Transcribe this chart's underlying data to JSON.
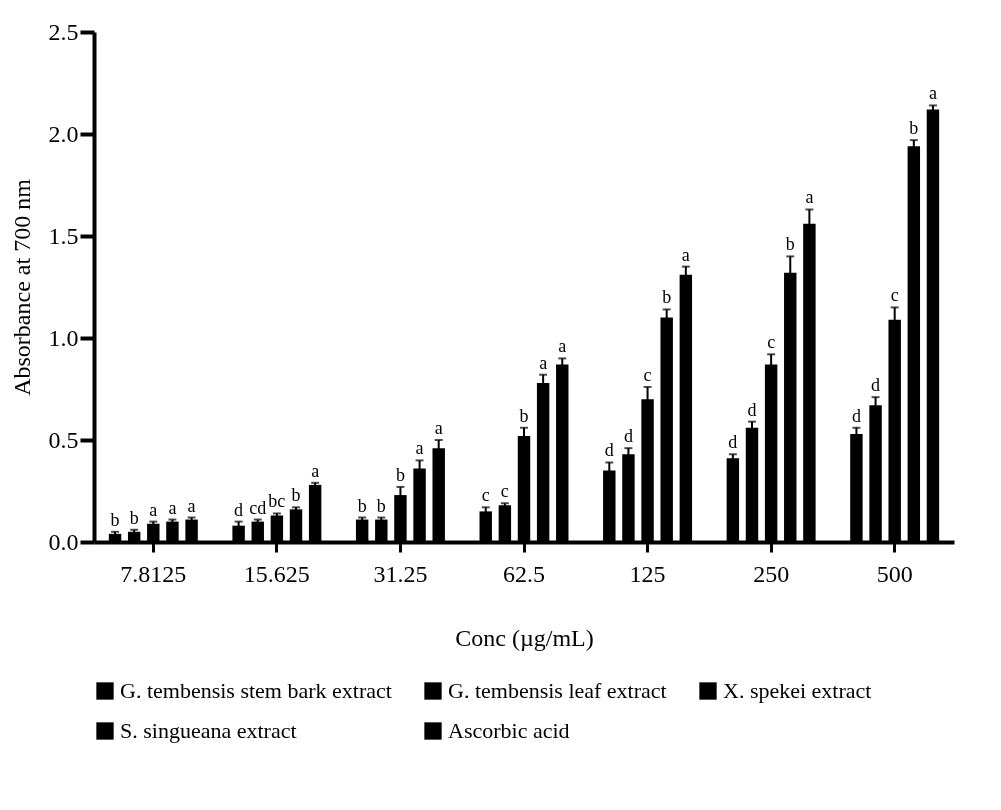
{
  "chart_data": {
    "type": "bar",
    "xlabel": "Conc (µg/mL)",
    "ylabel": "Absorbance at 700 nm",
    "categories": [
      "7.8125",
      "15.625",
      "31.25",
      "62.5",
      "125",
      "250",
      "500"
    ],
    "ylim": [
      0,
      2.5
    ],
    "yticks": [
      {
        "value": 0,
        "label": "0.0"
      },
      {
        "value": 0.5,
        "label": "0.5"
      },
      {
        "value": 1,
        "label": "1.0"
      },
      {
        "value": 1.5,
        "label": "1.5"
      },
      {
        "value": 2,
        "label": "2.0"
      },
      2.5
    ],
    "grid": false,
    "legend": "bottom",
    "series": [
      {
        "name": "G. tembensis stem bark extract",
        "color": "#000000",
        "values": [
          0.04,
          0.08,
          0.11,
          0.15,
          0.35,
          0.41,
          0.53
        ],
        "errors": [
          0.01,
          0.02,
          0.01,
          0.02,
          0.04,
          0.02,
          0.03
        ],
        "value_labels": [
          "b",
          "d",
          "b",
          "c",
          "d",
          "d",
          "d"
        ]
      },
      {
        "name": "G. tembensis leaf extract",
        "color": "#000000",
        "values": [
          0.05,
          0.1,
          0.11,
          0.18,
          0.43,
          0.56,
          0.67
        ],
        "errors": [
          0.01,
          0.01,
          0.01,
          0.01,
          0.03,
          0.03,
          0.04
        ],
        "value_labels": [
          "b",
          "cd",
          "b",
          "c",
          "d",
          "d",
          "d"
        ]
      },
      {
        "name": "X. spekei extract",
        "color": "#000000",
        "values": [
          0.09,
          0.13,
          0.23,
          0.52,
          0.7,
          0.87,
          1.09
        ],
        "errors": [
          0.01,
          0.01,
          0.04,
          0.04,
          0.06,
          0.05,
          0.06
        ],
        "value_labels": [
          "a",
          "bc",
          "b",
          "b",
          "c",
          "c",
          "c"
        ]
      },
      {
        "name": "S. singueana extract",
        "color": "#000000",
        "values": [
          0.1,
          0.16,
          0.36,
          0.78,
          1.1,
          1.32,
          1.94
        ],
        "errors": [
          0.01,
          0.01,
          0.04,
          0.04,
          0.04,
          0.08,
          0.03
        ],
        "value_labels": [
          "a",
          "b",
          "a",
          "a",
          "b",
          "b",
          "b"
        ]
      },
      {
        "name": "Ascorbic acid",
        "color": "#000000",
        "values": [
          0.11,
          0.28,
          0.46,
          0.87,
          1.31,
          1.56,
          2.12
        ],
        "errors": [
          0.01,
          0.01,
          0.04,
          0.03,
          0.04,
          0.07,
          0.02
        ],
        "value_labels": [
          "a",
          "a",
          "a",
          "a",
          "a",
          "a",
          "a"
        ]
      }
    ]
  }
}
